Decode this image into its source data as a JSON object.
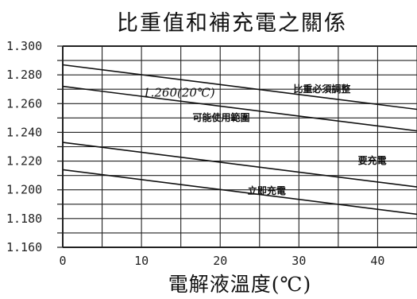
{
  "chart_data": {
    "type": "line",
    "title": "比重值和補充電之關係",
    "xlabel": "電解液溫度(℃)",
    "ylabel": "",
    "xlim": [
      0,
      45
    ],
    "ylim": [
      1.16,
      1.3
    ],
    "xticks": [
      "0",
      "10",
      "20",
      "30",
      "40"
    ],
    "yticks": [
      "1.300",
      "1.280",
      "1.260",
      "1.240",
      "1.220",
      "1.200",
      "1.180",
      "1.160"
    ],
    "grid": true,
    "series": [
      {
        "x": [
          0,
          45
        ],
        "y": [
          1.287,
          1.256
        ]
      },
      {
        "x": [
          0,
          45
        ],
        "y": [
          1.272,
          1.241
        ]
      },
      {
        "x": [
          0,
          45
        ],
        "y": [
          1.233,
          1.202
        ]
      },
      {
        "x": [
          0,
          45
        ],
        "y": [
          1.214,
          1.183
        ]
      }
    ],
    "annotations": [
      {
        "text": "1.260(20℃)",
        "x": 10.2,
        "y": 1.265,
        "style": "italic"
      },
      {
        "text": "比重必須調整",
        "x": 29.3,
        "y": 1.268
      },
      {
        "text": "可能使用範圍",
        "x": 16.5,
        "y": 1.248
      },
      {
        "text": "要充電",
        "x": 37.5,
        "y": 1.218
      },
      {
        "text": "立即充電",
        "x": 23.5,
        "y": 1.197
      }
    ]
  }
}
